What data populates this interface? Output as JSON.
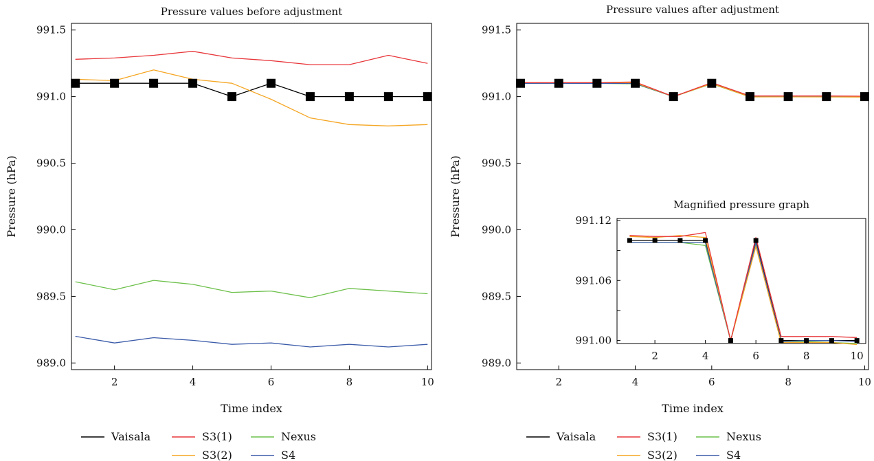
{
  "chart_data": [
    {
      "id": "before",
      "type": "line",
      "title": "Pressure values before adjustment",
      "xlabel": "Time index",
      "ylabel": "Pressure (hPa)",
      "xlim": [
        0.9,
        10.1
      ],
      "ylim": [
        988.95,
        991.55
      ],
      "xticks": [
        2,
        4,
        6,
        8,
        10
      ],
      "xtick_labels": [
        "2",
        "4",
        "6",
        "8",
        "10"
      ],
      "yticks": [
        989.0,
        989.5,
        990.0,
        990.5,
        991.0,
        991.5
      ],
      "ytick_labels": [
        "989.0",
        "989.5",
        "990.0",
        "990.5",
        "991.0",
        "991.5"
      ],
      "x": [
        1,
        2,
        3,
        4,
        5,
        6,
        7,
        8,
        9,
        10
      ],
      "series": [
        {
          "name": "Vaisala",
          "color": "#000000",
          "markers": true,
          "values": [
            991.1,
            991.1,
            991.1,
            991.1,
            991.0,
            991.1,
            991.0,
            991.0,
            991.0,
            991.0
          ]
        },
        {
          "name": "S3(1)",
          "color": "#e8363a",
          "markers": false,
          "values": [
            991.28,
            991.29,
            991.31,
            991.34,
            991.29,
            991.27,
            991.24,
            991.24,
            991.31,
            991.25
          ]
        },
        {
          "name": "S3(2)",
          "color": "#f5a623",
          "markers": false,
          "values": [
            991.13,
            991.12,
            991.2,
            991.13,
            991.1,
            990.98,
            990.84,
            990.79,
            990.78,
            990.79
          ]
        },
        {
          "name": "Nexus",
          "color": "#6cc04a",
          "markers": false,
          "values": [
            989.61,
            989.55,
            989.62,
            989.59,
            989.53,
            989.54,
            989.49,
            989.56,
            989.54,
            989.52
          ]
        },
        {
          "name": "S4",
          "color": "#3b5ba9",
          "markers": false,
          "values": [
            989.2,
            989.15,
            989.19,
            989.17,
            989.14,
            989.15,
            989.12,
            989.14,
            989.12,
            989.14
          ]
        }
      ],
      "legend_position": "bottom"
    },
    {
      "id": "after",
      "type": "line",
      "title": "Pressure values after adjustment",
      "xlabel": "Time index",
      "ylabel": "Pressure (hPa)",
      "xlim": [
        0.9,
        10.1
      ],
      "ylim": [
        988.95,
        991.55
      ],
      "xticks": [
        2,
        4,
        6,
        8,
        10
      ],
      "xtick_labels": [
        "2",
        "4",
        "6",
        "8",
        "10"
      ],
      "yticks": [
        989.0,
        989.5,
        990.0,
        990.5,
        991.0,
        991.5
      ],
      "ytick_labels": [
        "989.0",
        "989.5",
        "990.0",
        "990.5",
        "991.0",
        "991.5"
      ],
      "x": [
        1,
        2,
        3,
        4,
        5,
        6,
        7,
        8,
        9,
        10
      ],
      "series": [
        {
          "name": "Vaisala",
          "color": "#000000",
          "markers": true,
          "values": [
            991.1,
            991.1,
            991.1,
            991.1,
            991.0,
            991.1,
            991.0,
            991.0,
            991.0,
            991.0
          ]
        },
        {
          "name": "S3(1)",
          "color": "#e8363a",
          "markers": false,
          "values": [
            991.105,
            991.105,
            991.105,
            991.11,
            991.0,
            991.105,
            991.005,
            991.005,
            991.005,
            991.003
          ]
        },
        {
          "name": "S3(2)",
          "color": "#f5a623",
          "markers": false,
          "values": [
            991.105,
            991.104,
            991.106,
            991.104,
            991.0,
            991.098,
            990.998,
            990.998,
            990.998,
            990.997
          ]
        },
        {
          "name": "Nexus",
          "color": "#6cc04a",
          "markers": false,
          "values": [
            991.099,
            991.099,
            991.099,
            991.096,
            991.0,
            991.096,
            990.998,
            990.999,
            990.998,
            990.997
          ]
        },
        {
          "name": "S4",
          "color": "#3b5ba9",
          "markers": false,
          "values": [
            991.099,
            991.099,
            991.099,
            991.099,
            991.0,
            991.099,
            990.999,
            991.0,
            991.0,
            990.999
          ]
        }
      ],
      "legend_position": "bottom"
    },
    {
      "id": "inset",
      "type": "line",
      "title": "Magnified pressure graph",
      "xlabel": "",
      "ylabel": "",
      "xlim": [
        0.5,
        10.35
      ],
      "ylim": [
        990.997,
        991.122
      ],
      "xticks": [
        2,
        4,
        6,
        8,
        10
      ],
      "xtick_labels": [
        "2",
        "4",
        "6",
        "8",
        "10"
      ],
      "yticks": [
        991.0,
        991.03,
        991.06,
        991.09,
        991.12
      ],
      "ytick_labels": [
        "991.00",
        "",
        "991.06",
        "",
        "991.12"
      ],
      "x": [
        1,
        2,
        3,
        4,
        5,
        6,
        7,
        8,
        9,
        10
      ],
      "series": [
        {
          "name": "Vaisala",
          "color": "#000000",
          "markers": true,
          "values": [
            991.1,
            991.1,
            991.1,
            991.1,
            991.0,
            991.1,
            991.0,
            991.0,
            991.0,
            991.0
          ]
        },
        {
          "name": "S3(1)",
          "color": "#e8363a",
          "markers": false,
          "values": [
            991.105,
            991.104,
            991.104,
            991.108,
            991.0,
            991.103,
            991.004,
            991.004,
            991.004,
            991.003
          ]
        },
        {
          "name": "S3(2)",
          "color": "#f5a623",
          "markers": false,
          "values": [
            991.104,
            991.103,
            991.105,
            991.103,
            991.0,
            991.094,
            990.998,
            990.998,
            990.998,
            990.996
          ]
        },
        {
          "name": "Nexus",
          "color": "#6cc04a",
          "markers": false,
          "values": [
            991.098,
            991.098,
            991.098,
            991.095,
            991.0,
            991.095,
            990.998,
            990.999,
            990.998,
            990.997
          ]
        },
        {
          "name": "S4",
          "color": "#3b5ba9",
          "markers": false,
          "values": [
            991.098,
            991.098,
            991.098,
            991.098,
            991.0,
            991.098,
            990.999,
            991.0,
            991.0,
            990.999
          ]
        }
      ],
      "legend_position": "none"
    }
  ],
  "legend": {
    "items": [
      {
        "name": "Vaisala",
        "color": "#000000"
      },
      {
        "name": "S3(1)",
        "color": "#e8363a"
      },
      {
        "name": "Nexus",
        "color": "#6cc04a"
      },
      {
        "name": "S3(2)",
        "color": "#f5a623"
      },
      {
        "name": "S4",
        "color": "#3b5ba9"
      }
    ]
  }
}
